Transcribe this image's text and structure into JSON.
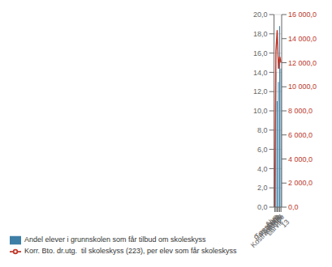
{
  "chart_data": {
    "type": "bar",
    "categories": [
      "Nye Larvik",
      "Tønsberg",
      "Porsgrunn",
      "Skien",
      "Arendal",
      "Kostragruppe 13"
    ],
    "series": [
      {
        "name": "Andel elever i grunnskolen som får tilbud om skoleskyss",
        "type": "bar",
        "color": "#3d7fa6",
        "values": [
          0,
          14.0,
          11.0,
          13.0,
          18.8,
          14.4
        ]
      },
      {
        "name": "Korr. Bto. dr.utg.  til skoleskyss (223), per elev som får skoleskyss",
        "type": "line",
        "color": "#c0392b",
        "axis": "y2",
        "values": [
          0,
          13000,
          14700,
          11500,
          12500,
          12000
        ]
      }
    ],
    "ylim": [
      0,
      20
    ],
    "yticks": [
      {
        "value": 0.0,
        "label": "0,0"
      },
      {
        "value": 2.0,
        "label": "2,0"
      },
      {
        "value": 4.0,
        "label": "4,0"
      },
      {
        "value": 6.0,
        "label": "6,0"
      },
      {
        "value": 8.0,
        "label": "8,0"
      },
      {
        "value": 10.0,
        "label": "10,0"
      },
      {
        "value": 12.0,
        "label": "12,0"
      },
      {
        "value": 14.0,
        "label": "14,0"
      },
      {
        "value": 16.0,
        "label": "16,0"
      },
      {
        "value": 18.0,
        "label": "18,0"
      },
      {
        "value": 20.0,
        "label": "20,0"
      }
    ],
    "y2lim": [
      0,
      16000
    ],
    "y2ticks": [
      {
        "value": 0,
        "label": "0,0"
      },
      {
        "value": 2000,
        "label": "2 000,0"
      },
      {
        "value": 4000,
        "label": "4 000,0"
      },
      {
        "value": 6000,
        "label": "6 000,0"
      },
      {
        "value": 8000,
        "label": "8 000,0"
      },
      {
        "value": 10000,
        "label": "10 000,0"
      },
      {
        "value": 12000,
        "label": "12 000,0"
      },
      {
        "value": 14000,
        "label": "14 000,0"
      },
      {
        "value": 16000,
        "label": "16 000,0"
      }
    ],
    "grid": true,
    "legend": "lower left"
  }
}
